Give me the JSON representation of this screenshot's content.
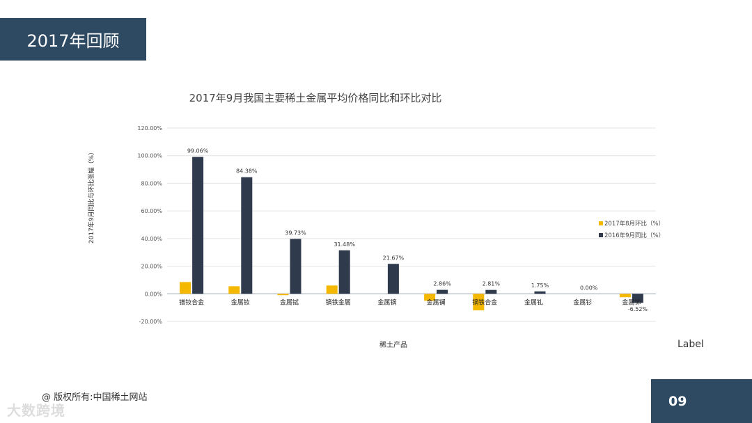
{
  "slide": {
    "title": "2017年回顾",
    "label_word": "Label",
    "copyright": "@ 版权所有:中国稀土网站",
    "watermark": "大数跨境",
    "page_number": "09"
  },
  "colors": {
    "header_bg": "#2e4a63",
    "series_mom": "#f5b800",
    "series_yoy": "#2f3a4d"
  },
  "chart_data": {
    "type": "bar",
    "title": "2017年9月我国主要稀土金属平均价格同比和环比对比",
    "xlabel": "稀土产品",
    "ylabel": "2017年9月同比与环比涨幅（%）",
    "ylim": [
      -20,
      120
    ],
    "yticks": [
      -20,
      0,
      20,
      40,
      60,
      80,
      100,
      120
    ],
    "ytick_labels": [
      "-20.00%",
      "0.00%",
      "20.00%",
      "40.00%",
      "60.00%",
      "80.00%",
      "100.00%",
      "120.00%"
    ],
    "grid": true,
    "legend_position": "right",
    "categories": [
      "镨钕合金",
      "金属钕",
      "金属铽",
      "镝铁金属",
      "金属镝",
      "金属镧",
      "镝铁合金",
      "金属钆",
      "金属钐",
      "金属铈"
    ],
    "series": [
      {
        "name": "2017年8月环比（%）",
        "values": [
          8.5,
          5.5,
          -1.0,
          6.0,
          0.0,
          -5.0,
          -12.0,
          0.0,
          0.0,
          -2.5
        ]
      },
      {
        "name": "2016年9月同比（%）",
        "values": [
          99.06,
          84.38,
          39.73,
          31.48,
          21.67,
          2.86,
          2.81,
          1.75,
          0.0,
          -6.52
        ],
        "data_labels": [
          "99.06%",
          "84.38%",
          "39.73%",
          "31.48%",
          "21.67%",
          "2.86%",
          "2.81%",
          "1.75%",
          "0.00%",
          "-6.52%"
        ]
      }
    ]
  }
}
